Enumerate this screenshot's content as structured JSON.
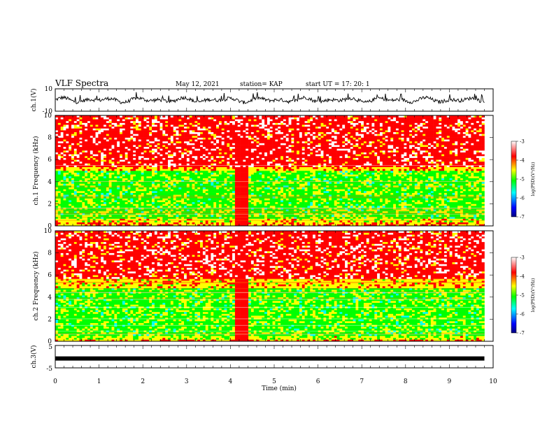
{
  "header": {
    "title": "VLF Spectra",
    "date": "May 12, 2021",
    "station": "station= KAP",
    "start": "start  UT  =   17: 20: 1"
  },
  "chart_data": [
    {
      "type": "line",
      "panel": "ch1-waveform",
      "ylabel": "ch.1(V)",
      "ylim": [
        -10,
        10
      ],
      "yticks": [
        "10",
        "-10"
      ],
      "xlim": [
        0,
        10
      ],
      "series_color": "#000000",
      "values_approx": "noisy oscillation roughly between -3 and +3 V, occasional spikes to about +6 V, from t=0 to t≈9.8 min"
    },
    {
      "type": "heatmap",
      "panel": "ch1-spectrogram",
      "ylabel": "ch.1  Frequency (kHz)",
      "ylim": [
        0,
        10
      ],
      "yticks": [
        "0",
        "2",
        "4",
        "6",
        "8",
        "10"
      ],
      "xlim": [
        0,
        10
      ],
      "data_end_min": 9.8,
      "level_bands": [
        {
          "f_from": 5.4,
          "f_to": 10.0,
          "log_psd": -3.8
        },
        {
          "f_from": 5.0,
          "f_to": 5.4,
          "log_psd": -4.3
        },
        {
          "f_from": 0.6,
          "f_to": 5.0,
          "log_psd": -5.0
        },
        {
          "f_from": 0.3,
          "f_to": 0.6,
          "log_psd": -4.5
        },
        {
          "f_from": 0.0,
          "f_to": 0.3,
          "log_psd": -4.2
        }
      ],
      "burst": {
        "t_from": 4.08,
        "t_to": 4.42,
        "log_psd": -3.8
      },
      "colorbar": {
        "label": "log(PSD)(V²/Hz)",
        "min": -7,
        "max": -3,
        "ticks": [
          "-3",
          "-4",
          "-5",
          "-6",
          "-7"
        ]
      }
    },
    {
      "type": "heatmap",
      "panel": "ch2-spectrogram",
      "ylabel": "ch.2  Frequency (kHz)",
      "ylim": [
        0,
        10
      ],
      "yticks": [
        "0",
        "2",
        "4",
        "6",
        "8",
        "10"
      ],
      "xlim": [
        0,
        10
      ],
      "data_end_min": 9.8,
      "level_bands": [
        {
          "f_from": 5.6,
          "f_to": 10.0,
          "log_psd": -3.8
        },
        {
          "f_from": 4.9,
          "f_to": 5.6,
          "log_psd": -4.4
        },
        {
          "f_from": 0.5,
          "f_to": 4.9,
          "log_psd": -5.0
        },
        {
          "f_from": 0.2,
          "f_to": 0.5,
          "log_psd": -4.6
        },
        {
          "f_from": 0.0,
          "f_to": 0.2,
          "log_psd": -4.2
        }
      ],
      "burst": {
        "t_from": 4.08,
        "t_to": 4.42,
        "log_psd": -3.8
      },
      "colorbar": {
        "label": "log(PSD)(V²/Hz)",
        "min": -7,
        "max": -3,
        "ticks": [
          "-3",
          "-4",
          "-5",
          "-6",
          "-7"
        ]
      }
    },
    {
      "type": "line",
      "panel": "ch3-waveform",
      "ylabel": "ch.3(V)",
      "ylim": [
        -5,
        5
      ],
      "yticks": [
        "5",
        "-5"
      ],
      "xlim": [
        0,
        10
      ],
      "xlabel": "Time  (min)",
      "xticks": [
        "0",
        "1",
        "2",
        "3",
        "4",
        "5",
        "6",
        "7",
        "8",
        "9",
        "10"
      ],
      "constant_value": -0.8,
      "series_color": "#000000"
    }
  ],
  "colormap": [
    "#000080",
    "#0000ff",
    "#00ffff",
    "#00ff00",
    "#ffff00",
    "#ff0000",
    "#ffffff"
  ]
}
